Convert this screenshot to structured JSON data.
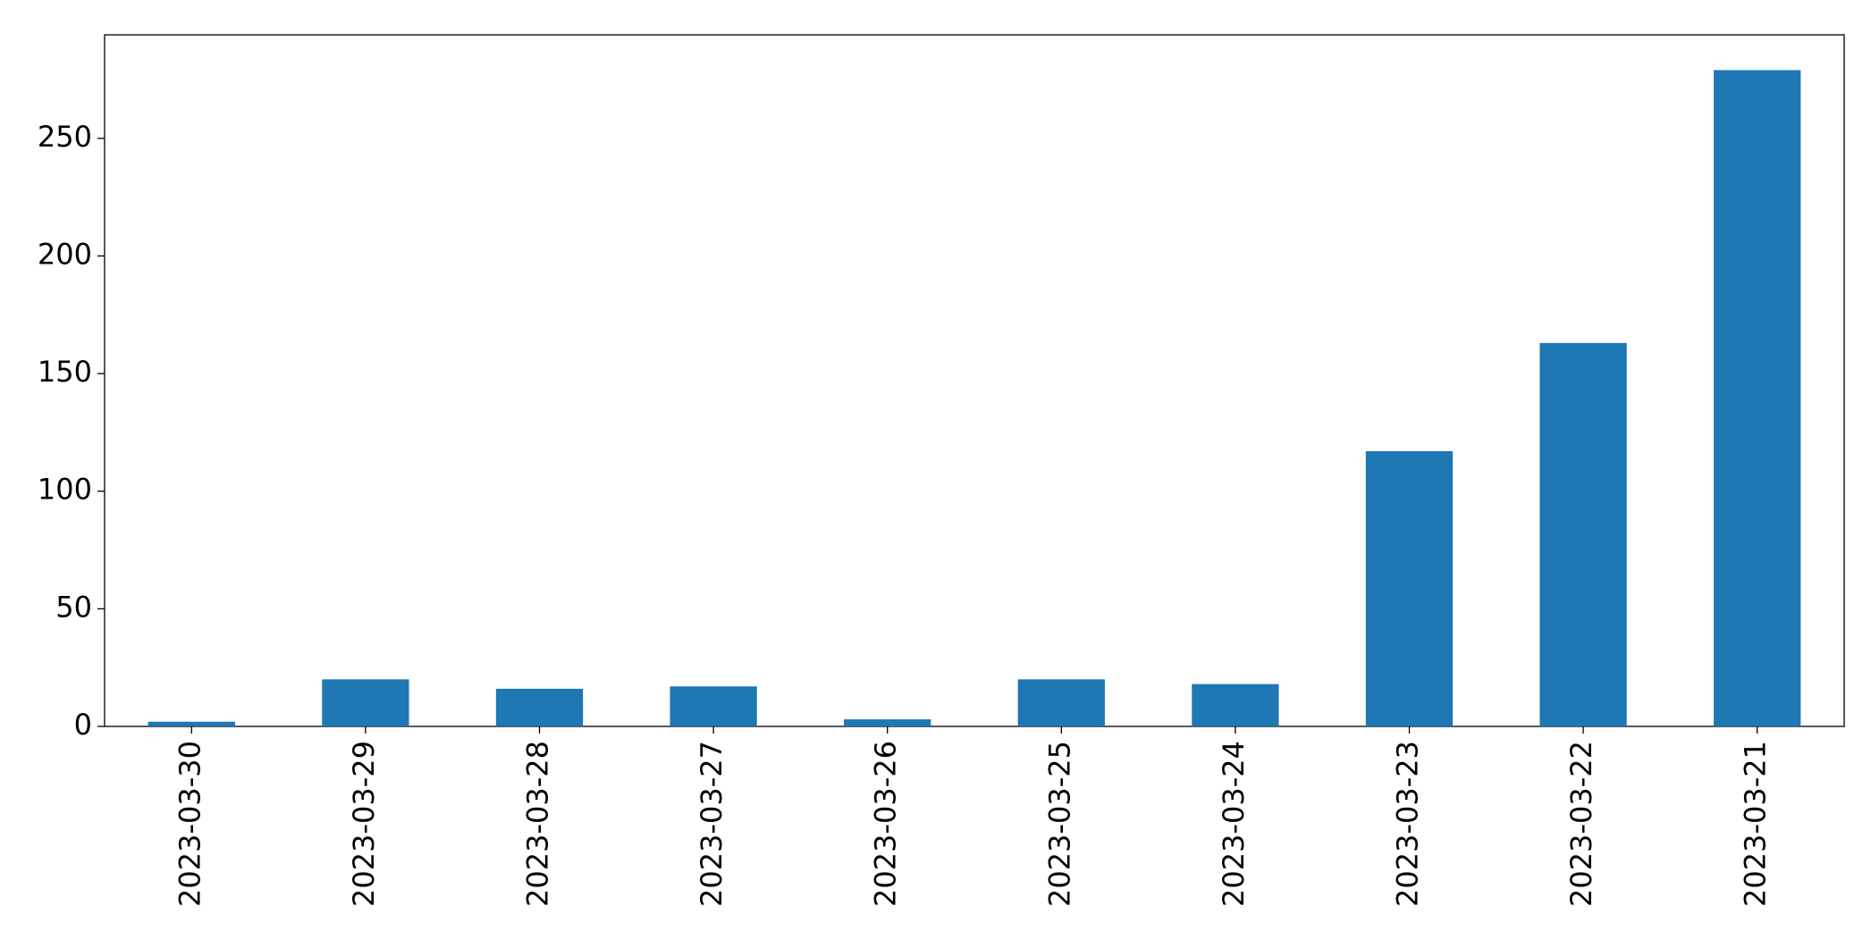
{
  "chart_data": {
    "type": "bar",
    "categories": [
      "2023-03-30",
      "2023-03-29",
      "2023-03-28",
      "2023-03-27",
      "2023-03-26",
      "2023-03-25",
      "2023-03-24",
      "2023-03-23",
      "2023-03-22",
      "2023-03-21"
    ],
    "values": [
      2,
      20,
      16,
      17,
      3,
      20,
      18,
      117,
      163,
      279
    ],
    "color": "#1f77b4",
    "ylim": [
      0,
      294
    ],
    "yticks": [
      0,
      50,
      100,
      150,
      200,
      250
    ],
    "grid": false
  }
}
